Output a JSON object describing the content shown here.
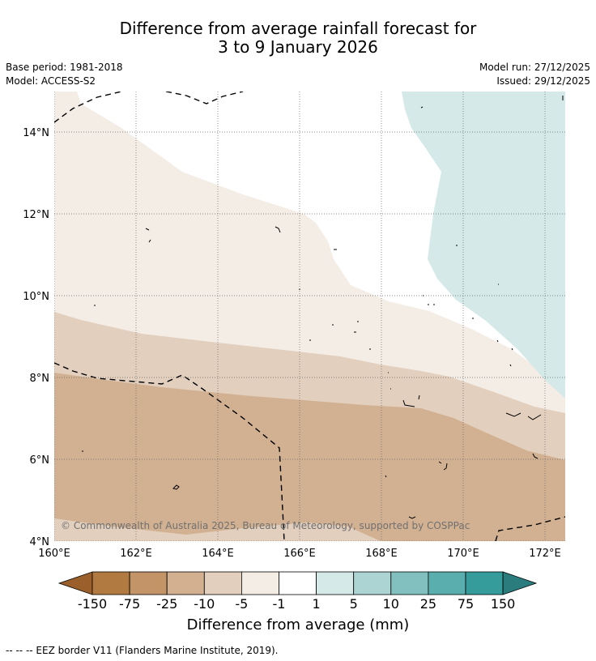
{
  "title_line1": "Difference from average rainfall forecast for",
  "title_line2": "3 to 9 January 2026",
  "base_period": "Base period: 1981-2018",
  "model": "Model: ACCESS-S2",
  "model_run": "Model run: 27/12/2025",
  "issued": "Issued: 29/12/2025",
  "copyright": "© Commonwealth of Australia 2025, Bureau of Meteorology, supported by COSPPac",
  "lon_labels": [
    "160°E",
    "162°E",
    "164°E",
    "166°E",
    "168°E",
    "170°E",
    "172°E"
  ],
  "lat_labels": [
    "14°N",
    "12°N",
    "10°N",
    "8°N",
    "6°N",
    "4°N"
  ],
  "colorbar": {
    "title": "Difference from average (mm)",
    "labels": [
      "-150",
      "-75",
      "-25",
      "-10",
      "-5",
      "-1",
      "1",
      "5",
      "10",
      "25",
      "75",
      "150"
    ],
    "colors": [
      "#9a5f2a",
      "#b07a40",
      "#c39467",
      "#d2b090",
      "#e2cfbd",
      "#f3ede6",
      "#ffffff",
      "#d4e9e8",
      "#abd4d3",
      "#82c0c0",
      "#5aaeae",
      "#359c9b",
      "#2a7c7d"
    ]
  },
  "legend_footer": "-- -- -- EEZ border V11 (Flanders Marine Institute, 2019)."
}
